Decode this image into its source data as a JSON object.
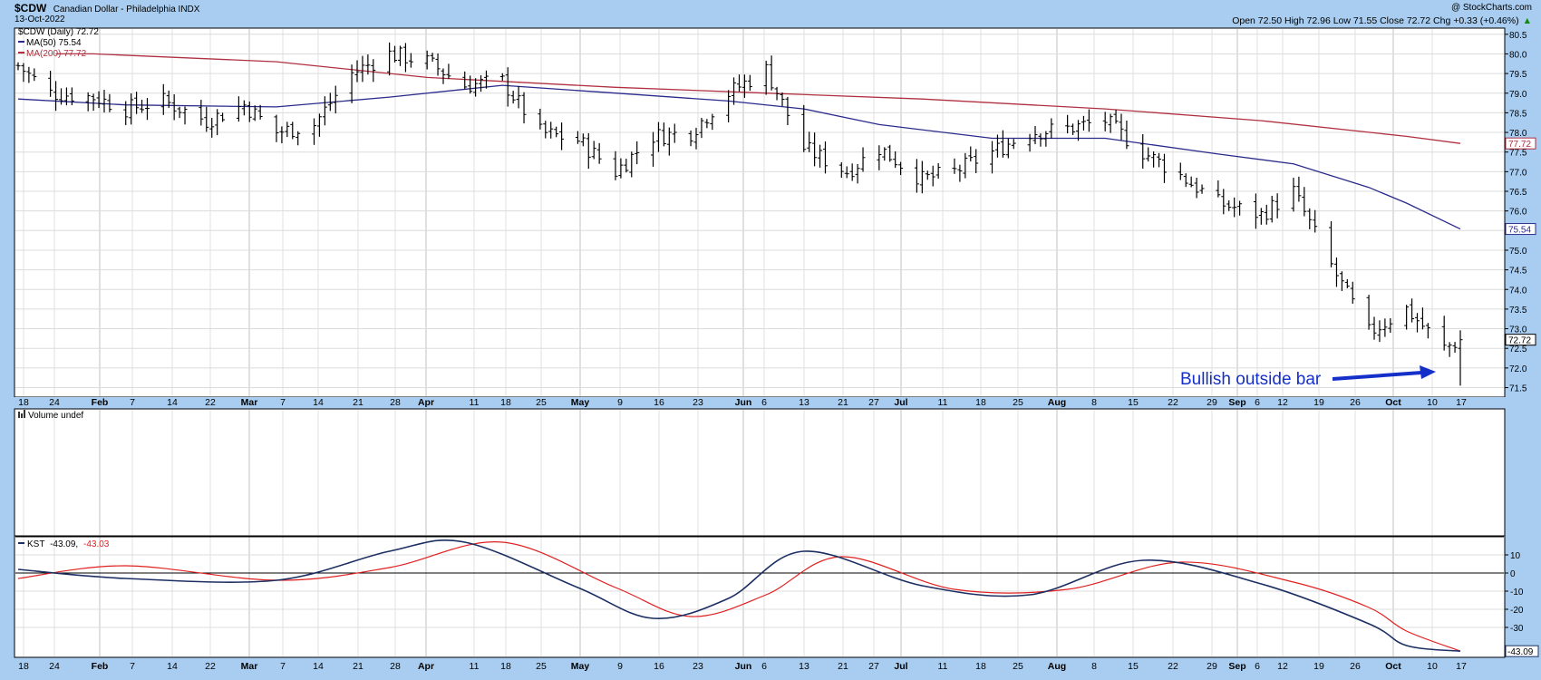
{
  "header": {
    "symbol": "$CDW",
    "name": "Canadian Dollar - Philadelphia  INDX",
    "date": "13-Oct-2022",
    "credit": "@ StockCharts.com",
    "ohlc": "Open 72.50  High 72.96  Low 71.55  Close 72.72  Chg +0.33 (+0.46%)",
    "chg_suffix": "▲"
  },
  "legend": {
    "price": "$CDW (Daily) 72.72",
    "ma50": "MA(50) 75.54",
    "ma200": "MA(200) 77.72",
    "volume": "Volume undef",
    "kst_label": "KST",
    "kst_value": "-43.09,",
    "kst_signal": "-43.03"
  },
  "annotation": "Bullish outside bar",
  "colors": {
    "background": "#a8cdf0",
    "panel": "#ffffff",
    "price_bars": "#000000",
    "ma50": "#2b2b8c",
    "ma200": "#b03040",
    "kst": "#1c2f63",
    "kst_signal": "#e02020",
    "annotation": "#1530c8",
    "grid": "#dcdcdc"
  },
  "x_axis_labels": [
    "18",
    "24",
    "Feb",
    "7",
    "14",
    "22",
    "Mar",
    "7",
    "14",
    "21",
    "28",
    "Apr",
    "11",
    "18",
    "25",
    "May",
    "9",
    "16",
    "23",
    "Jun",
    "6",
    "13",
    "21",
    "27",
    "Jul",
    "11",
    "18",
    "25",
    "Aug",
    "8",
    "15",
    "22",
    "29",
    "Sep",
    "6",
    "12",
    "19",
    "26",
    "Oct",
    "10",
    "17"
  ],
  "price_ticks": [
    "80.5",
    "80.0",
    "79.5",
    "79.0",
    "78.5",
    "78.0",
    "77.5",
    "77.0",
    "76.5",
    "76.0",
    "75.5",
    "75.0",
    "74.5",
    "74.0",
    "73.5",
    "73.0",
    "72.5",
    "72.0",
    "71.5"
  ],
  "price_flags": {
    "ma200": "77.72",
    "ma50": "75.54",
    "close": "72.72"
  },
  "kst_ticks": [
    "10",
    "0",
    "-10",
    "-20",
    "-30"
  ],
  "kst_flag": "-43.09",
  "chart_data": [
    {
      "type": "ohlc",
      "title": "Canadian Dollar - Philadelphia INDX",
      "ylim": [
        71.3,
        80.75
      ],
      "ohlc_approx": "daily OHLC bars, approx. 18-Jan-2022 to 13-Oct-2022",
      "series": [
        {
          "name": "$CDW (Daily) 72.72",
          "points": [
            [
              "2022-01-18",
              79.7
            ],
            [
              "2022-01-24",
              79.0
            ],
            [
              "2022-02-01",
              78.9
            ],
            [
              "2022-02-07",
              78.6
            ],
            [
              "2022-02-14",
              78.8
            ],
            [
              "2022-02-22",
              78.3
            ],
            [
              "2022-03-01",
              78.7
            ],
            [
              "2022-03-07",
              78.0
            ],
            [
              "2022-03-14",
              78.2
            ],
            [
              "2022-03-21",
              79.5
            ],
            [
              "2022-03-28",
              80.0
            ],
            [
              "2022-04-04",
              79.8
            ],
            [
              "2022-04-11",
              79.2
            ],
            [
              "2022-04-18",
              79.3
            ],
            [
              "2022-04-25",
              78.0
            ],
            [
              "2022-05-02",
              77.8
            ],
            [
              "2022-05-09",
              77.0
            ],
            [
              "2022-05-16",
              77.9
            ],
            [
              "2022-05-23",
              78.0
            ],
            [
              "2022-05-30",
              79.0
            ],
            [
              "2022-06-06",
              79.6
            ],
            [
              "2022-06-13",
              77.6
            ],
            [
              "2022-06-21",
              77.0
            ],
            [
              "2022-06-27",
              77.6
            ],
            [
              "2022-07-05",
              76.8
            ],
            [
              "2022-07-11",
              77.0
            ],
            [
              "2022-07-18",
              77.5
            ],
            [
              "2022-07-25",
              78.0
            ],
            [
              "2022-08-01",
              78.1
            ],
            [
              "2022-08-08",
              78.3
            ],
            [
              "2022-08-15",
              77.5
            ],
            [
              "2022-08-22",
              76.9
            ],
            [
              "2022-08-29",
              76.2
            ],
            [
              "2022-09-06",
              75.9
            ],
            [
              "2022-09-12",
              76.5
            ],
            [
              "2022-09-19",
              74.6
            ],
            [
              "2022-09-26",
              72.9
            ],
            [
              "2022-10-03",
              73.5
            ],
            [
              "2022-10-10",
              72.5
            ],
            [
              "2022-10-13",
              72.72
            ]
          ]
        },
        {
          "name": "MA(50) 75.54",
          "points": [
            [
              "2022-01-18",
              78.85
            ],
            [
              "2022-02-07",
              78.7
            ],
            [
              "2022-03-07",
              78.65
            ],
            [
              "2022-03-28",
              78.9
            ],
            [
              "2022-04-18",
              79.2
            ],
            [
              "2022-05-09",
              79.0
            ],
            [
              "2022-05-30",
              78.8
            ],
            [
              "2022-06-13",
              78.6
            ],
            [
              "2022-06-27",
              78.2
            ],
            [
              "2022-07-18",
              77.85
            ],
            [
              "2022-08-08",
              77.85
            ],
            [
              "2022-08-29",
              77.45
            ],
            [
              "2022-09-12",
              77.2
            ],
            [
              "2022-09-26",
              76.6
            ],
            [
              "2022-10-03",
              76.2
            ],
            [
              "2022-10-13",
              75.54
            ]
          ]
        },
        {
          "name": "MA(200) 77.72",
          "points": [
            [
              "2022-02-01",
              80.0
            ],
            [
              "2022-03-07",
              79.8
            ],
            [
              "2022-04-04",
              79.4
            ],
            [
              "2022-05-09",
              79.15
            ],
            [
              "2022-06-06",
              79.0
            ],
            [
              "2022-07-05",
              78.85
            ],
            [
              "2022-08-08",
              78.6
            ],
            [
              "2022-09-06",
              78.3
            ],
            [
              "2022-10-03",
              77.9
            ],
            [
              "2022-10-13",
              77.72
            ]
          ]
        }
      ]
    },
    {
      "type": "line",
      "ylim": [
        -45,
        22
      ],
      "series": [
        {
          "name": "KST -43.09",
          "points": [
            [
              "2022-01-18",
              2
            ],
            [
              "2022-02-07",
              -3
            ],
            [
              "2022-03-07",
              -4
            ],
            [
              "2022-03-28",
              12
            ],
            [
              "2022-04-11",
              17
            ],
            [
              "2022-05-02",
              -8
            ],
            [
              "2022-05-16",
              -25
            ],
            [
              "2022-05-30",
              -14
            ],
            [
              "2022-06-13",
              12
            ],
            [
              "2022-07-05",
              -7
            ],
            [
              "2022-07-25",
              -12
            ],
            [
              "2022-08-15",
              7
            ],
            [
              "2022-09-06",
              -6
            ],
            [
              "2022-09-26",
              -28
            ],
            [
              "2022-10-03",
              -40
            ],
            [
              "2022-10-13",
              -43.09
            ]
          ]
        },
        {
          "name": "-43.03",
          "points": [
            [
              "2022-01-18",
              -3
            ],
            [
              "2022-02-07",
              4
            ],
            [
              "2022-03-07",
              -4
            ],
            [
              "2022-03-28",
              3
            ],
            [
              "2022-04-18",
              17
            ],
            [
              "2022-05-09",
              -8
            ],
            [
              "2022-05-23",
              -24
            ],
            [
              "2022-06-06",
              -12
            ],
            [
              "2022-06-20",
              9
            ],
            [
              "2022-07-11",
              -9
            ],
            [
              "2022-08-01",
              -9
            ],
            [
              "2022-08-22",
              6
            ],
            [
              "2022-09-12",
              -5
            ],
            [
              "2022-09-26",
              -19
            ],
            [
              "2022-10-03",
              -32
            ],
            [
              "2022-10-13",
              -43.03
            ]
          ]
        }
      ]
    }
  ]
}
